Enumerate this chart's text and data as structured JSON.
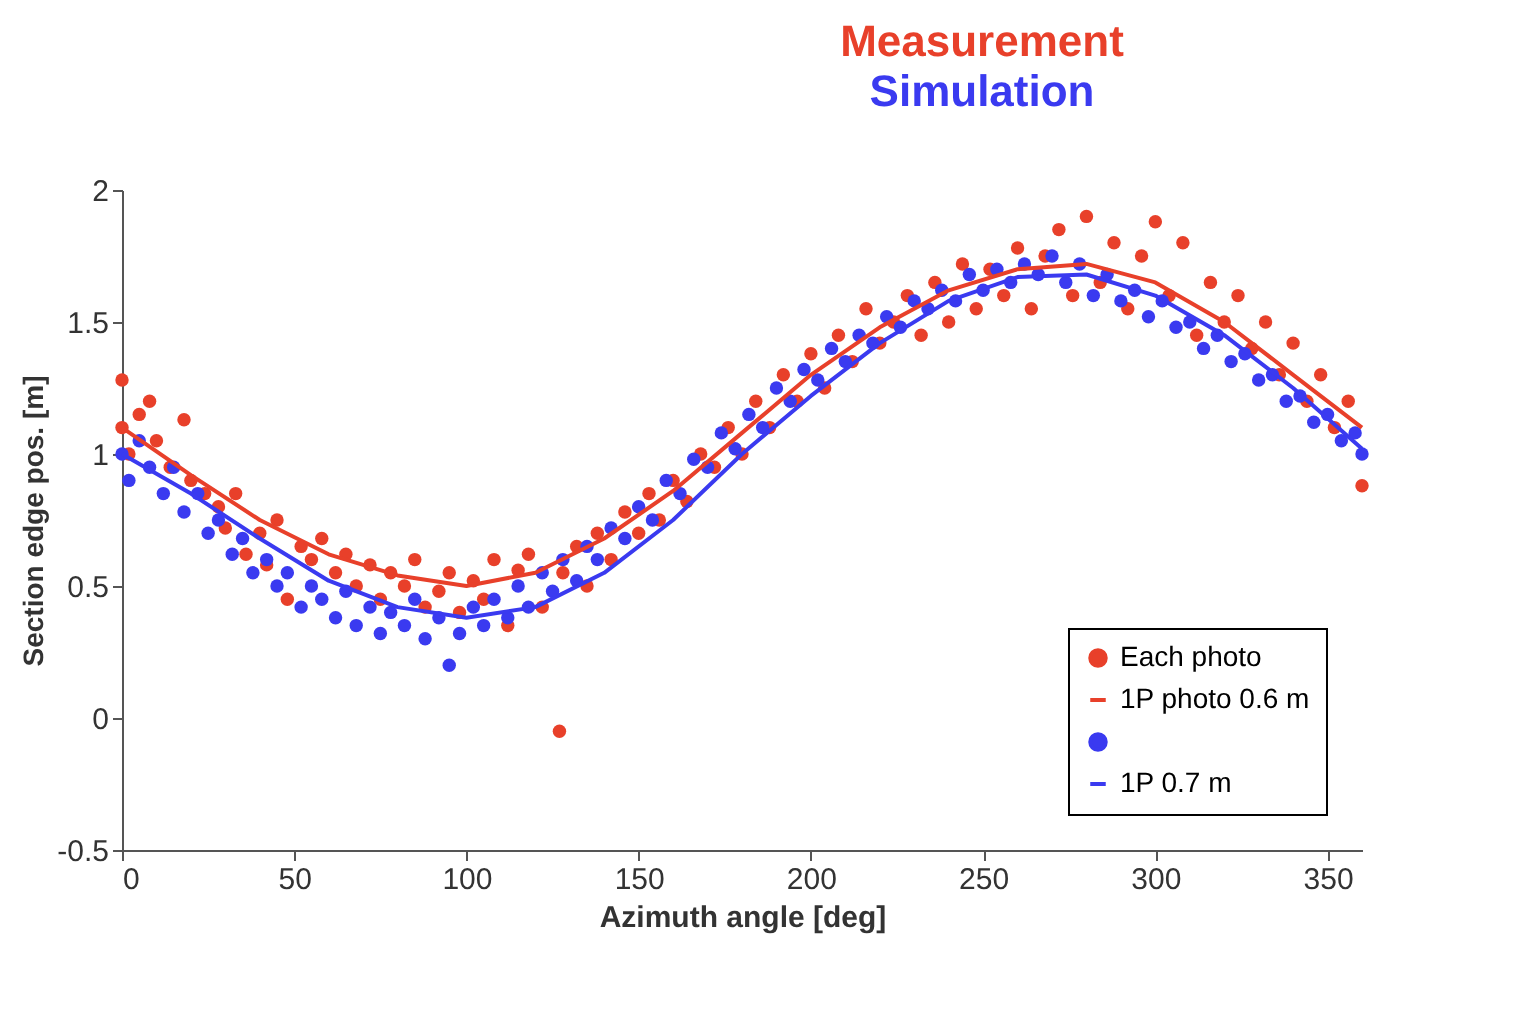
{
  "chart_data": {
    "type": "scatter",
    "title": "Measurement",
    "subtitle": "Simulation",
    "xlabel": "Azimuth angle [deg]",
    "ylabel": "Section edge pos. [m]",
    "xlim": [
      0,
      360
    ],
    "xticks": [
      0,
      50,
      100,
      150,
      200,
      250,
      300,
      350
    ],
    "ylim": [
      -0.5,
      2
    ],
    "yticks": [
      -0.5,
      0,
      0.5,
      1,
      1.5,
      2
    ],
    "legend": "bottom right",
    "series": [
      {
        "name": "Each photo",
        "marker": "circle",
        "color": "#e8402a",
        "x": [
          0,
          0,
          2,
          5,
          8,
          10,
          14,
          18,
          20,
          24,
          28,
          30,
          33,
          36,
          40,
          42,
          45,
          48,
          52,
          55,
          58,
          62,
          65,
          68,
          72,
          75,
          78,
          82,
          85,
          88,
          92,
          95,
          98,
          102,
          105,
          108,
          112,
          115,
          118,
          122,
          127,
          128,
          132,
          135,
          138,
          142,
          146,
          150,
          153,
          156,
          160,
          164,
          168,
          172,
          176,
          180,
          184,
          188,
          192,
          196,
          200,
          204,
          208,
          212,
          216,
          220,
          224,
          228,
          232,
          236,
          240,
          244,
          248,
          252,
          256,
          260,
          264,
          268,
          272,
          276,
          280,
          284,
          288,
          292,
          296,
          300,
          304,
          308,
          312,
          316,
          320,
          324,
          328,
          332,
          336,
          340,
          344,
          348,
          352,
          356,
          360
        ],
        "values": [
          1.1,
          1.28,
          1.0,
          1.15,
          1.2,
          1.05,
          0.95,
          1.13,
          0.9,
          0.85,
          0.8,
          0.72,
          0.85,
          0.62,
          0.7,
          0.58,
          0.75,
          0.45,
          0.65,
          0.6,
          0.68,
          0.55,
          0.62,
          0.5,
          0.58,
          0.45,
          0.55,
          0.5,
          0.6,
          0.42,
          0.48,
          0.55,
          0.4,
          0.52,
          0.45,
          0.6,
          0.35,
          0.56,
          0.62,
          0.42,
          -0.05,
          0.55,
          0.65,
          0.5,
          0.7,
          0.6,
          0.78,
          0.7,
          0.85,
          0.75,
          0.9,
          0.82,
          1.0,
          0.95,
          1.1,
          1.0,
          1.2,
          1.1,
          1.3,
          1.2,
          1.38,
          1.25,
          1.45,
          1.35,
          1.55,
          1.42,
          1.5,
          1.6,
          1.45,
          1.65,
          1.5,
          1.72,
          1.55,
          1.7,
          1.6,
          1.78,
          1.55,
          1.75,
          1.85,
          1.6,
          1.9,
          1.65,
          1.8,
          1.55,
          1.75,
          1.88,
          1.6,
          1.8,
          1.45,
          1.65,
          1.5,
          1.6,
          1.4,
          1.5,
          1.3,
          1.42,
          1.2,
          1.3,
          1.1,
          1.2,
          0.88
        ]
      },
      {
        "name": "1P photo 0.6 m",
        "type": "line",
        "marker": "none",
        "color": "#e8402a",
        "x": [
          0,
          20,
          40,
          60,
          80,
          100,
          120,
          140,
          160,
          180,
          200,
          220,
          240,
          260,
          280,
          300,
          320,
          340,
          360
        ],
        "values": [
          1.1,
          0.92,
          0.75,
          0.62,
          0.54,
          0.5,
          0.55,
          0.68,
          0.86,
          1.08,
          1.3,
          1.48,
          1.62,
          1.7,
          1.72,
          1.65,
          1.5,
          1.3,
          1.1
        ]
      },
      {
        "marker": "circle",
        "color": "#3a3af0",
        "x": [
          0,
          2,
          5,
          8,
          12,
          15,
          18,
          22,
          25,
          28,
          32,
          35,
          38,
          42,
          45,
          48,
          52,
          55,
          58,
          62,
          65,
          68,
          72,
          75,
          78,
          82,
          85,
          88,
          92,
          95,
          98,
          102,
          105,
          108,
          112,
          115,
          118,
          122,
          125,
          128,
          132,
          135,
          138,
          142,
          146,
          150,
          154,
          158,
          162,
          166,
          170,
          174,
          178,
          182,
          186,
          190,
          194,
          198,
          202,
          206,
          210,
          214,
          218,
          222,
          226,
          230,
          234,
          238,
          242,
          246,
          250,
          254,
          258,
          262,
          266,
          270,
          274,
          278,
          282,
          286,
          290,
          294,
          298,
          302,
          306,
          310,
          314,
          318,
          322,
          326,
          330,
          334,
          338,
          342,
          346,
          350,
          354,
          358,
          360
        ],
        "values": [
          1.0,
          0.9,
          1.05,
          0.95,
          0.85,
          0.95,
          0.78,
          0.85,
          0.7,
          0.75,
          0.62,
          0.68,
          0.55,
          0.6,
          0.5,
          0.55,
          0.42,
          0.5,
          0.45,
          0.38,
          0.48,
          0.35,
          0.42,
          0.32,
          0.4,
          0.35,
          0.45,
          0.3,
          0.38,
          0.2,
          0.32,
          0.42,
          0.35,
          0.45,
          0.38,
          0.5,
          0.42,
          0.55,
          0.48,
          0.6,
          0.52,
          0.65,
          0.6,
          0.72,
          0.68,
          0.8,
          0.75,
          0.9,
          0.85,
          0.98,
          0.95,
          1.08,
          1.02,
          1.15,
          1.1,
          1.25,
          1.2,
          1.32,
          1.28,
          1.4,
          1.35,
          1.45,
          1.42,
          1.52,
          1.48,
          1.58,
          1.55,
          1.62,
          1.58,
          1.68,
          1.62,
          1.7,
          1.65,
          1.72,
          1.68,
          1.75,
          1.65,
          1.72,
          1.6,
          1.68,
          1.58,
          1.62,
          1.52,
          1.58,
          1.48,
          1.5,
          1.4,
          1.45,
          1.35,
          1.38,
          1.28,
          1.3,
          1.2,
          1.22,
          1.12,
          1.15,
          1.05,
          1.08,
          1.0
        ]
      },
      {
        "name": "1P 0.7 m",
        "type": "line",
        "marker": "none",
        "color": "#3a3af0",
        "x": [
          0,
          20,
          40,
          60,
          80,
          100,
          120,
          140,
          160,
          180,
          200,
          220,
          240,
          260,
          280,
          300,
          320,
          340,
          360
        ],
        "values": [
          1.0,
          0.85,
          0.68,
          0.52,
          0.42,
          0.38,
          0.42,
          0.55,
          0.75,
          1.0,
          1.22,
          1.42,
          1.58,
          1.67,
          1.68,
          1.6,
          1.45,
          1.25,
          1.02
        ]
      }
    ]
  }
}
